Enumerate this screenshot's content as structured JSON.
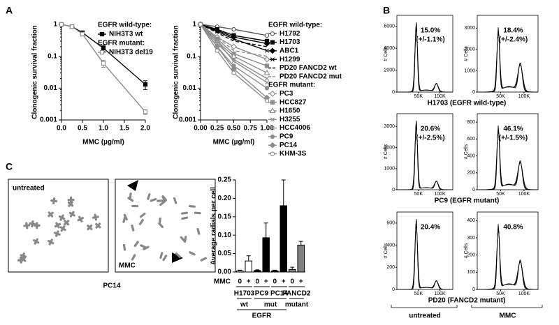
{
  "panel_labels": [
    "A",
    "B",
    "C"
  ],
  "chart_data": [
    {
      "type": "line",
      "log_y": true,
      "xlabel": "MMC (µg/ml)",
      "ylabel": "Clonogenic survival fraction",
      "x": [
        0,
        0.25,
        0.5,
        1,
        2
      ],
      "xlim": [
        0,
        2
      ],
      "xticks": [
        {
          "value": 0,
          "label": "0.0"
        },
        {
          "value": 0.5,
          "label": "0.5"
        },
        {
          "value": 1,
          "label": "1.0"
        },
        {
          "value": 1.5,
          "label": "1.5"
        },
        {
          "value": 2,
          "label": "2.0"
        }
      ],
      "ylim": [
        0.001,
        1
      ],
      "yticks": [
        0.001,
        0.01,
        0.1,
        1
      ],
      "series_groups": [
        {
          "title": "EGFR wild-type:",
          "series": [
            {
              "name": "NIH3T3 wt",
              "color": "#000000",
              "marker": "square",
              "open": false,
              "values": [
                1,
                0.85,
                0.55,
                0.18,
                0.013
              ],
              "errors": [
                0.03,
                0.05,
                0.06,
                0.04,
                0.004
              ]
            }
          ]
        },
        {
          "title": "EGFR mutant:",
          "series": [
            {
              "name": "NIH3T3 del19",
              "color": "#8c8c8c",
              "marker": "square",
              "open": true,
              "values": [
                1,
                0.85,
                0.5,
                0.06,
                0.0018
              ],
              "errors": [
                0.03,
                0.06,
                0.07,
                0.015,
                0.0003
              ]
            }
          ]
        }
      ]
    },
    {
      "type": "line",
      "log_y": true,
      "xlabel": "MMC (µg/ml)",
      "ylabel": "Clonogenic survival fraction",
      "x": [
        0,
        0.25,
        0.5,
        1
      ],
      "xlim": [
        0,
        1
      ],
      "xticks": [
        {
          "value": 0,
          "label": "0.00"
        },
        {
          "value": 0.25,
          "label": "0.25"
        },
        {
          "value": 0.5,
          "label": "0.50"
        },
        {
          "value": 0.75,
          "label": "0.75"
        },
        {
          "value": 1,
          "label": "1.00"
        }
      ],
      "ylim": [
        0.001,
        1
      ],
      "yticks": [
        0.001,
        0.01,
        0.1,
        1
      ],
      "series_groups": [
        {
          "title": "EGFR wild-type:",
          "series": [
            {
              "name": "H1792",
              "color": "#555555",
              "marker": "circle",
              "open": true,
              "dash": false,
              "values": [
                1,
                0.85,
                0.7,
                0.45
              ]
            },
            {
              "name": "H1703",
              "color": "#000000",
              "marker": "square",
              "open": false,
              "dash": false,
              "values": [
                1,
                0.7,
                0.45,
                0.3
              ]
            },
            {
              "name": "ABC1",
              "color": "#000000",
              "marker": "diamond",
              "open": false,
              "dash": false,
              "values": [
                1,
                0.65,
                0.4,
                0.25
              ]
            },
            {
              "name": "H1299",
              "color": "#000000",
              "marker": "x",
              "open": false,
              "dash": false,
              "values": [
                1,
                0.6,
                0.35,
                0.15
              ]
            },
            {
              "name": "PD20 FANCD2 wt",
              "color": "#000000",
              "marker": "none",
              "open": false,
              "dash": true,
              "values": [
                1,
                0.55,
                0.3,
                0.2
              ]
            },
            {
              "name": "PD20 FANCD2 mut",
              "color": "#8c8c8c",
              "marker": "none",
              "open": false,
              "dash": true,
              "values": [
                1,
                0.4,
                0.15,
                0.1
              ]
            }
          ]
        },
        {
          "title": "EGFR mutant:",
          "series": [
            {
              "name": "PC3",
              "color": "#8c8c8c",
              "marker": "diamond",
              "open": true,
              "dash": false,
              "values": [
                1,
                0.4,
                0.2,
                0.08
              ]
            },
            {
              "name": "HCC827",
              "color": "#8c8c8c",
              "marker": "square",
              "open": false,
              "dash": false,
              "values": [
                1,
                0.35,
                0.12,
                0.05
              ]
            },
            {
              "name": "H1650",
              "color": "#8c8c8c",
              "marker": "triangle",
              "open": true,
              "dash": false,
              "values": [
                1,
                0.3,
                0.1,
                0.03
              ]
            },
            {
              "name": "H3255",
              "color": "#8c8c8c",
              "marker": "x",
              "open": false,
              "dash": false,
              "values": [
                1,
                0.25,
                0.08,
                0.02
              ]
            },
            {
              "name": "HCC4006",
              "color": "#8c8c8c",
              "marker": "x",
              "open": false,
              "dash": false,
              "values": [
                1,
                0.3,
                0.07,
                0.015
              ]
            },
            {
              "name": "PC9",
              "color": "#8c8c8c",
              "marker": "circle",
              "open": false,
              "dash": false,
              "values": [
                1,
                0.2,
                0.05,
                0.01
              ]
            },
            {
              "name": "PC14",
              "color": "#8c8c8c",
              "marker": "diamond",
              "open": false,
              "dash": false,
              "values": [
                1,
                0.2,
                0.04,
                0.005
              ]
            },
            {
              "name": "KHM-3S",
              "color": "#8c8c8c",
              "marker": "circle",
              "open": true,
              "dash": false,
              "values": [
                1,
                0.15,
                0.03,
                0.004
              ]
            }
          ]
        }
      ]
    },
    {
      "type": "bar",
      "ylabel": "Average radials per cell",
      "row_label": "MMC",
      "categories": [
        "0",
        "+",
        "0",
        "+",
        "0",
        "+",
        "0",
        "+"
      ],
      "values": [
        0.003,
        0.03,
        0.004,
        0.093,
        0.003,
        0.18,
        0.007,
        0.073
      ],
      "errors": [
        0.002,
        0.014,
        0.002,
        0.04,
        0.002,
        0.07,
        0.006,
        0.01
      ],
      "colors": [
        "#ffffff",
        "#ffffff",
        "#000000",
        "#000000",
        "#000000",
        "#000000",
        "#808080",
        "#808080"
      ],
      "groups": [
        "H1703",
        "PC9",
        "PC14",
        "FANCD2"
      ],
      "subgroups": [
        "wt",
        "mut",
        "mutant"
      ],
      "group_title": "EGFR",
      "ylim": [
        0,
        0.25
      ],
      "yticks": [
        {
          "value": 0,
          "label": "0.00"
        },
        {
          "value": 0.05,
          "label": "0.05"
        },
        {
          "value": 0.1,
          "label": "0.10"
        },
        {
          "value": 0.15,
          "label": "0.15"
        },
        {
          "value": 0.2,
          "label": "0.20"
        },
        {
          "value": 0.25,
          "label": "0.25"
        }
      ]
    }
  ],
  "images": {
    "labels": [
      "untreated",
      "MMC"
    ],
    "caption": "PC14"
  },
  "flow": {
    "ylabel": "# Cells",
    "xlim": [
      0,
      130000
    ],
    "xticks": [
      {
        "value": 50000,
        "label": "50K"
      },
      {
        "value": 100000,
        "label": "100K"
      }
    ],
    "row_titles": [
      "H1703 (EGFR wild-type)",
      "PC9 (EGFR mutant)",
      "PD20 (FANCD2 mutant)"
    ],
    "column_titles": [
      "untreated",
      "MMC"
    ],
    "panels": [
      {
        "ylim": [
          0,
          7000
        ],
        "yticks": [
          0,
          2000,
          4000,
          6000
        ],
        "annotation": [
          "15.0%",
          "(+/-1.1%)"
        ]
      },
      {
        "ylim": [
          0,
          3600
        ],
        "yticks": [
          0,
          1000,
          2000,
          3000
        ],
        "annotation": [
          "18.4%",
          "(+/-2.4%)"
        ]
      },
      {
        "ylim": [
          0,
          3600
        ],
        "yticks": [
          0,
          1000,
          2000,
          3000
        ],
        "annotation": [
          "20.6%",
          "(+/-2.5%)"
        ]
      },
      {
        "ylim": [
          0,
          900
        ],
        "yticks": [
          0,
          200,
          400,
          600,
          800
        ],
        "annotation": [
          "46.1%",
          "(+/-1.5%)"
        ]
      },
      {
        "ylim": [
          0,
          700
        ],
        "yticks": [
          0,
          200,
          400,
          600
        ],
        "annotation": [
          "20.4%"
        ]
      },
      {
        "ylim": [
          0,
          450
        ],
        "yticks": [
          0,
          100,
          200,
          300,
          400
        ],
        "annotation": [
          "40.8%"
        ]
      }
    ]
  }
}
